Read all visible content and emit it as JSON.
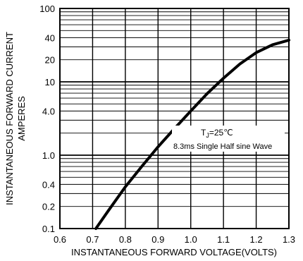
{
  "chart_data": {
    "type": "line",
    "xlabel": "INSTANTANEOUS FORWARD VOLTAGE(VOLTS)",
    "ylabel_line1": "INSTANTANEOUS FORWARD CURRENT",
    "ylabel_line2": "AMPERES",
    "xlim": [
      0.6,
      1.3
    ],
    "ylim": [
      0.1,
      100
    ],
    "yscale": "log",
    "grid": true,
    "x_ticks": [
      0.6,
      0.7,
      0.8,
      0.9,
      1.0,
      1.1,
      1.2,
      1.3
    ],
    "x_tick_labels": [
      "0.6",
      "0.7",
      "0.8",
      "0.9",
      "1.0",
      "1.1",
      "1.2",
      "1.3"
    ],
    "y_tick_values": [
      0.1,
      0.2,
      0.4,
      1.0,
      4.0,
      10,
      20,
      40,
      100
    ],
    "y_tick_labels": [
      "0.1",
      "0.2",
      "0.4",
      "1.0",
      "4.0",
      "10",
      "20",
      "40",
      "100"
    ],
    "annotation_line1_main": "T",
    "annotation_line1_sub": "J",
    "annotation_line1_rest": "=25℃",
    "annotation_line2": "8.3ms Single Half sine Wave",
    "series": [
      {
        "x": [
          0.71,
          0.75,
          0.8,
          0.85,
          0.9,
          0.95,
          1.0,
          1.05,
          1.1,
          1.15,
          1.2,
          1.25,
          1.3
        ],
        "y": [
          0.1,
          0.18,
          0.37,
          0.7,
          1.3,
          2.3,
          4.0,
          6.9,
          11.2,
          17.5,
          25,
          32,
          37
        ]
      }
    ]
  }
}
